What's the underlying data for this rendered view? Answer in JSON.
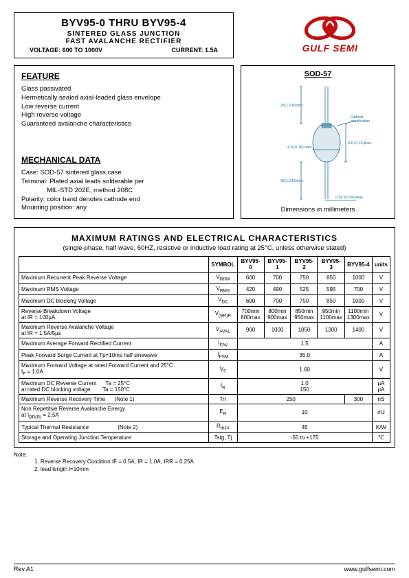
{
  "header": {
    "title": "BYV95-0 THRU BYV95-4",
    "sub1": "SINTERED  GLASS  JUNCTION",
    "sub2": "FAST  AVALANCHE  RECTIFIER",
    "voltage_label": "VOLTAGE: 600 TO 1000V",
    "current_label": "CURRENT: 1.5A",
    "logo_text": "GULF SEMI",
    "logo_color": "#c01010"
  },
  "feature": {
    "heading": "FEATURE",
    "lines": [
      "Glass passivated",
      "Hermetically sealed axial-leaded glass envelope",
      "Low reverse current",
      "High reverse voltage",
      "Guaranteed avalanche characteristics"
    ]
  },
  "mechanical": {
    "heading": "MECHANICAL DATA",
    "lines": [
      "Case: SOD-57 sintered glass case",
      "Terminal: Plated axial leads solderable per",
      "              MIL-STD 202E, method 208C",
      "Polarity: color band denotes cathode end",
      "Mounting position: any"
    ]
  },
  "diagram": {
    "title": "SOD-57",
    "caption": "Dimensions in millimeters",
    "stroke": "#1a6b96",
    "labels": {
      "top_lead": "26(1.016)min.",
      "body_w": "4.0 (0.15) max.",
      "body_h": "3.6 (0.14)max.",
      "bot_lead": "26(1.016)min.",
      "wire": "0.92 (0.036)max",
      "cathode": "Cathode\nIdentification"
    }
  },
  "ratings": {
    "title": "MAXIMUM  RATINGS  AND  ELECTRICAL  CHARACTERISTICS",
    "subtitle": "(single-phase, half-wave, 60HZ, resistive or inductive load rating at 25°C, unless otherwise stated)",
    "columns": [
      "SYMBOL",
      "BYV95-0",
      "BYV95-1",
      "BYV95-2",
      "BYV95-3",
      "BYV95-4",
      "units"
    ],
    "rows": [
      {
        "label": "Maximum Recurrent Peak Reverse Voltage",
        "sym": "V<sub class='sub'>RRM</sub>",
        "v": [
          "600",
          "700",
          "750",
          "850",
          "1000"
        ],
        "u": "V"
      },
      {
        "label": "Maximum RMS Voltage",
        "sym": "V<sub class='sub'>RMS</sub>",
        "v": [
          "420",
          "490",
          "525",
          "595",
          "700"
        ],
        "u": "V"
      },
      {
        "label": "Maximum DC blocking Voltage",
        "sym": "V<sub class='sub'>DC</sub>",
        "v": [
          "600",
          "700",
          "750",
          "850",
          "1000"
        ],
        "u": "V"
      },
      {
        "label": "Reverse Breakdown Voltage<br>at IR = 100µA",
        "sym": "V<sub class='sub'>(BR)R</sub>",
        "v": [
          "700min<br>800max",
          "800min<br>900max",
          "850min<br>950max",
          "950min<br>1100max",
          "1100min<br>1300max"
        ],
        "u": "V"
      },
      {
        "label": "Maximum Reverse Avalanche Voltage<br>at IR = 1.5A/5µs",
        "sym": "V<sub class='sub'>AVAL</sub>",
        "v": [
          "900",
          "1000",
          "1050",
          "1200",
          "1400"
        ],
        "u": "V"
      },
      {
        "label": "Maximum Average Forward Rectified Current",
        "sym": "I<sub class='sub'>FAV</sub>",
        "span": "1.5",
        "u": "A"
      },
      {
        "label": "Peak Forward Surge Current at Tp=10ms half sinewave",
        "sym": "I<sub class='sub'>FSM</sub>",
        "span": "35.0",
        "u": "A"
      },
      {
        "label": "Maximum Forward Voltage at rated Forward Current and 25°C &nbsp;&nbsp;&nbsp;&nbsp;&nbsp;&nbsp;&nbsp;&nbsp;&nbsp;&nbsp;&nbsp;&nbsp;&nbsp;&nbsp;&nbsp;&nbsp;&nbsp;&nbsp;&nbsp; I<sub class='sub'>F</sub> = 1.0A",
        "sym": "V<sub class='sub'>F</sub>",
        "span": "1.60",
        "u": "V"
      },
      {
        "label": "Maximum DC Reverse Current &nbsp;&nbsp;&nbsp;&nbsp; Ta = 25°C<br>at rated DC blocking voltage &nbsp;&nbsp;&nbsp;&nbsp;&nbsp;&nbsp; Ta = 150°C",
        "sym": "I<sub class='sub'>R</sub>",
        "span": "1.0<br>150",
        "u": "µA<br>µA"
      },
      {
        "label": "Maximum Reverse Recovery Time &nbsp;&nbsp;&nbsp;&nbsp; (Note 1)",
        "sym": "Trr",
        "span4": "250",
        "last": "300",
        "u": "nS"
      },
      {
        "label": "Non Repetitive Reverse Avalanche Energy<br>at I<sub class='sub'>BR(R)</sub> = 2.5A",
        "sym": "E<sub class='sub'>R</sub>",
        "span": "10",
        "u": "mJ"
      },
      {
        "label": "Typical Thermal Resistance &nbsp;&nbsp;&nbsp;&nbsp;&nbsp;&nbsp;&nbsp;&nbsp;&nbsp;&nbsp;&nbsp;&nbsp;&nbsp;&nbsp;&nbsp;&nbsp;&nbsp; (Note 2)",
        "sym": "R<sub class='sub'>thJA</sub>",
        "span": "45",
        "u": "K/W"
      },
      {
        "label": "Storage and Operating Junction Temperature",
        "sym": "Tstg, Tj",
        "span": "-55  to  +175",
        "u": "℃"
      }
    ]
  },
  "notes": {
    "head": "Note:",
    "n1": "1. Reverse Recovery Condition IF = 0.5A, IR = 1.0A, IRR = 0.25A",
    "n2": "2. lead length l=10mm"
  },
  "footer": {
    "left": "Rev.A1",
    "right": "www.gulfsemi.com"
  }
}
